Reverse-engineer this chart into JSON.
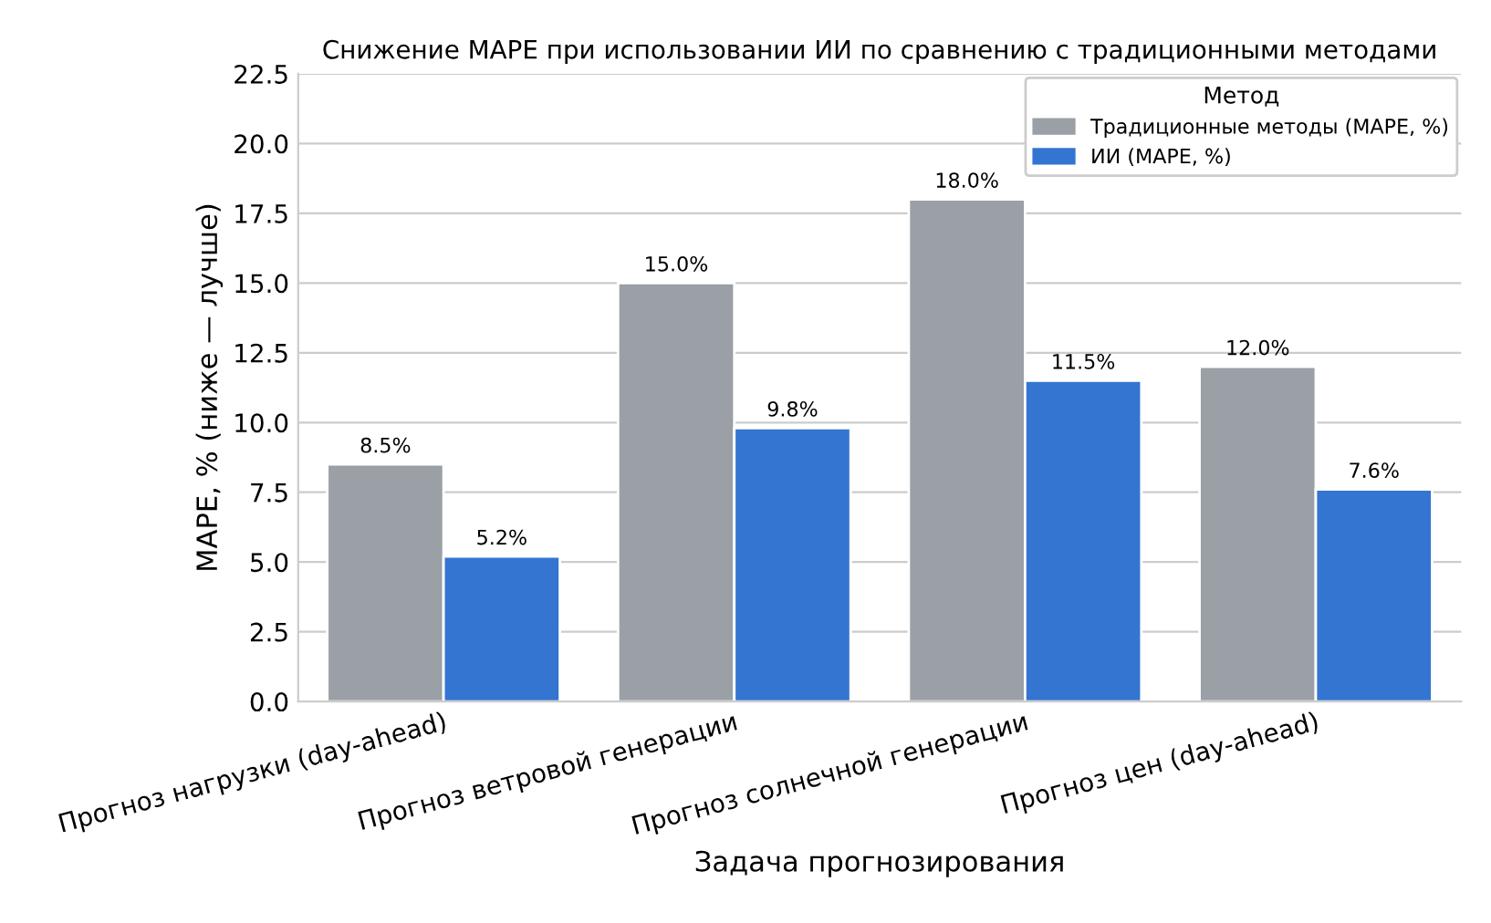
{
  "chart_data": {
    "type": "bar",
    "title": "Снижение MAPE при использовании ИИ по сравнению с традиционными методами",
    "xlabel": "Задача прогнозирования",
    "ylabel": "MAPE, % (ниже — лучше)",
    "categories": [
      "Прогноз нагрузки (day-ahead)",
      "Прогноз ветровой генерации",
      "Прогноз солнечной генерации",
      "Прогноз цен (day-ahead)"
    ],
    "series": [
      {
        "name": "Традиционные методы (MAPE, %)",
        "color": "#9aa0a6",
        "values": [
          8.5,
          15.0,
          18.0,
          12.0
        ],
        "value_labels": [
          "8.5%",
          "15.0%",
          "18.0%",
          "12.0%"
        ]
      },
      {
        "name": "ИИ (MAPE, %)",
        "color": "#3375d1",
        "values": [
          5.2,
          9.8,
          11.5,
          7.6
        ],
        "value_labels": [
          "5.2%",
          "9.8%",
          "11.5%",
          "7.6%"
        ]
      }
    ],
    "legend_title": "Метод",
    "legend": "top right",
    "grid": "y",
    "ylim": [
      0,
      22.5
    ],
    "yticks": [
      {
        "value": 0,
        "label": "0.0"
      },
      {
        "value": 2.5,
        "label": "2.5"
      },
      {
        "value": 5,
        "label": "5.0"
      },
      {
        "value": 7.5,
        "label": "7.5"
      },
      {
        "value": 10,
        "label": "10.0"
      },
      {
        "value": 12.5,
        "label": "12.5"
      },
      {
        "value": 15,
        "label": "15.0"
      },
      {
        "value": 17.5,
        "label": "17.5"
      },
      {
        "value": 20,
        "label": "20.0"
      },
      {
        "value": 22.5,
        "label": "22.5"
      }
    ]
  }
}
